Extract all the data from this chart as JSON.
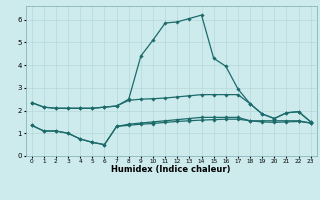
{
  "title": "",
  "xlabel": "Humidex (Indice chaleur)",
  "xlim": [
    -0.5,
    23.5
  ],
  "ylim": [
    0,
    6.6
  ],
  "yticks": [
    0,
    1,
    2,
    3,
    4,
    5,
    6
  ],
  "xticks": [
    0,
    1,
    2,
    3,
    4,
    5,
    6,
    7,
    8,
    9,
    10,
    11,
    12,
    13,
    14,
    15,
    16,
    17,
    18,
    19,
    20,
    21,
    22,
    23
  ],
  "bg_color": "#cdeaec",
  "grid_color": "#b8d8da",
  "line_color": "#1c6b6b",
  "line_width": 0.9,
  "marker": "D",
  "marker_size": 1.8,
  "series": [
    [
      2.35,
      2.15,
      2.1,
      2.1,
      2.1,
      2.1,
      2.15,
      2.2,
      2.5,
      4.4,
      5.1,
      5.85,
      5.9,
      6.05,
      6.2,
      4.3,
      3.95,
      2.95,
      2.3,
      1.85,
      1.65,
      1.9,
      1.95,
      1.5
    ],
    [
      2.35,
      2.15,
      2.1,
      2.1,
      2.1,
      2.1,
      2.15,
      2.2,
      2.45,
      2.5,
      2.52,
      2.55,
      2.6,
      2.65,
      2.7,
      2.7,
      2.7,
      2.7,
      2.3,
      1.85,
      1.65,
      1.9,
      1.95,
      1.5
    ],
    [
      1.35,
      1.1,
      1.1,
      1.0,
      0.75,
      0.6,
      0.5,
      1.3,
      1.4,
      1.45,
      1.5,
      1.55,
      1.6,
      1.65,
      1.7,
      1.7,
      1.7,
      1.7,
      1.55,
      1.55,
      1.55,
      1.55,
      1.55,
      1.45
    ],
    [
      1.35,
      1.1,
      1.1,
      1.0,
      0.75,
      0.6,
      0.5,
      1.3,
      1.35,
      1.4,
      1.43,
      1.48,
      1.52,
      1.55,
      1.58,
      1.6,
      1.62,
      1.62,
      1.55,
      1.5,
      1.48,
      1.5,
      1.52,
      1.45
    ]
  ]
}
